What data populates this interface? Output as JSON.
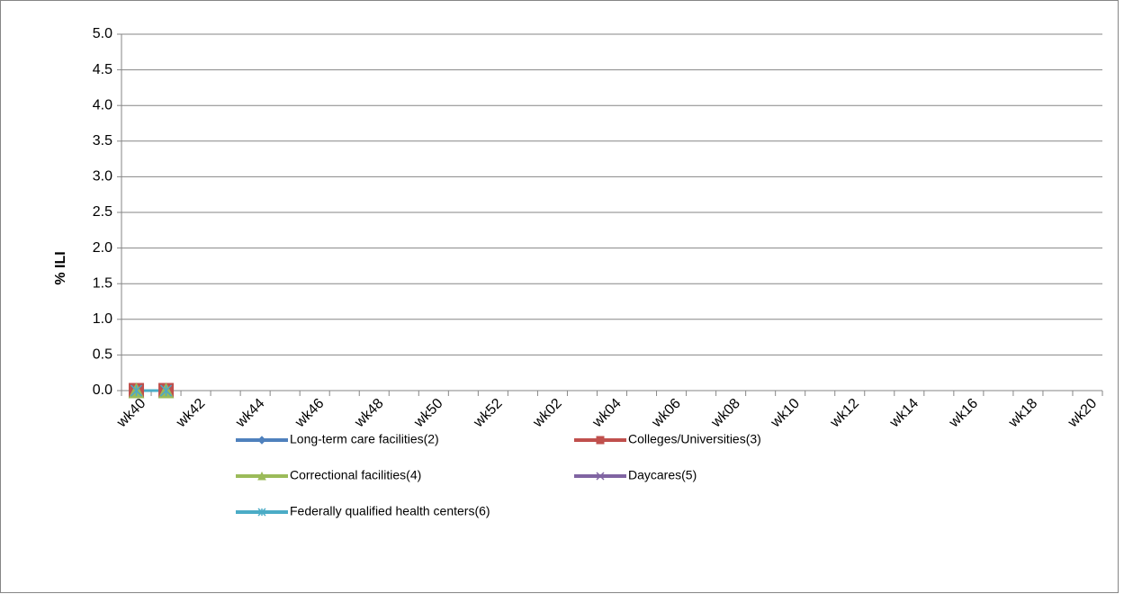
{
  "chart_data": {
    "type": "line",
    "y_label": "% ILI",
    "categories": [
      "wk40",
      null,
      "wk42",
      null,
      "wk44",
      null,
      "wk46",
      null,
      "wk48",
      null,
      "wk50",
      null,
      "wk52",
      null,
      "wk02",
      null,
      "wk04",
      null,
      "wk06",
      null,
      "wk08",
      null,
      "wk10",
      null,
      "wk12",
      null,
      "wk14",
      null,
      "wk16",
      null,
      "wk18",
      null,
      "wk20"
    ],
    "series": [
      {
        "name": "Long-term care facilities(2)",
        "color": "#4f81bd",
        "marker": "diamond",
        "values": [
          0,
          0,
          null,
          null,
          null,
          null,
          null,
          null,
          null,
          null,
          null,
          null,
          null,
          null,
          null,
          null,
          null,
          null,
          null,
          null,
          null,
          null,
          null,
          null,
          null,
          null,
          null,
          null,
          null,
          null,
          null,
          null,
          null
        ]
      },
      {
        "name": "Colleges/Universities(3)",
        "color": "#c0504d",
        "marker": "square",
        "values": [
          0,
          0,
          null,
          null,
          null,
          null,
          null,
          null,
          null,
          null,
          null,
          null,
          null,
          null,
          null,
          null,
          null,
          null,
          null,
          null,
          null,
          null,
          null,
          null,
          null,
          null,
          null,
          null,
          null,
          null,
          null,
          null,
          null
        ]
      },
      {
        "name": "Correctional facilities(4)",
        "color": "#9bbb59",
        "marker": "triangle",
        "values": [
          0,
          0,
          null,
          null,
          null,
          null,
          null,
          null,
          null,
          null,
          null,
          null,
          null,
          null,
          null,
          null,
          null,
          null,
          null,
          null,
          null,
          null,
          null,
          null,
          null,
          null,
          null,
          null,
          null,
          null,
          null,
          null,
          null
        ]
      },
      {
        "name": "Daycares(5)",
        "color": "#8064a2",
        "marker": "x",
        "values": [
          0,
          0,
          null,
          null,
          null,
          null,
          null,
          null,
          null,
          null,
          null,
          null,
          null,
          null,
          null,
          null,
          null,
          null,
          null,
          null,
          null,
          null,
          null,
          null,
          null,
          null,
          null,
          null,
          null,
          null,
          null,
          null,
          null
        ]
      },
      {
        "name": "Federally qualified health centers(6)",
        "color": "#4bacc6",
        "marker": "star",
        "values": [
          0,
          0,
          null,
          null,
          null,
          null,
          null,
          null,
          null,
          null,
          null,
          null,
          null,
          null,
          null,
          null,
          null,
          null,
          null,
          null,
          null,
          null,
          null,
          null,
          null,
          null,
          null,
          null,
          null,
          null,
          null,
          null,
          null
        ]
      }
    ],
    "ylim": [
      0,
      5
    ],
    "yticks": [
      {
        "value": 0,
        "label": "0.0"
      },
      0.5,
      {
        "value": 1,
        "label": "1.0"
      },
      1.5,
      {
        "value": 2,
        "label": "2.0"
      },
      2.5,
      {
        "value": 3,
        "label": "3.0"
      },
      3.5,
      {
        "value": 4,
        "label": "4.0"
      },
      4.5,
      {
        "value": 5,
        "label": "5.0"
      }
    ],
    "grid": true,
    "legend": "bottom"
  }
}
